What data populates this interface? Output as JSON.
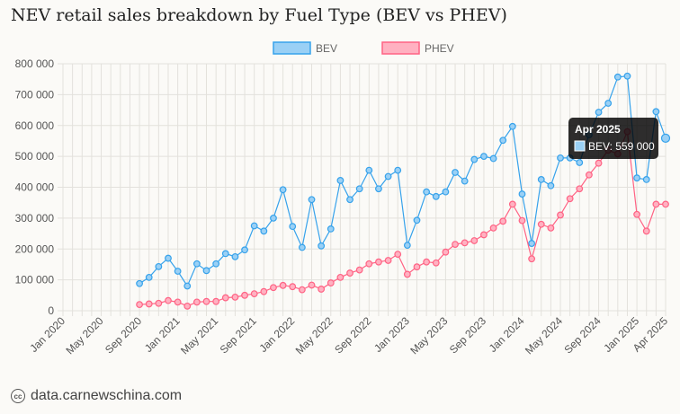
{
  "title": "NEV retail sales breakdown by Fuel Type (BEV vs PHEV)",
  "footer": {
    "source": "data.carnewschina.com",
    "icon": "creative-commons-icon"
  },
  "chart_data": {
    "type": "line",
    "title": "NEV retail sales breakdown by Fuel Type (BEV vs PHEV)",
    "legend_placement": "top-center",
    "grid": true,
    "x_start": "2020-01",
    "x_ticks": [
      "Jan 2020",
      "May 2020",
      "Sep 2020",
      "Jan 2021",
      "May 2021",
      "Sep 2021",
      "Jan 2022",
      "May 2022",
      "Sep 2022",
      "Jan 2023",
      "May 2023",
      "Sep 2023",
      "Jan 2024",
      "May 2024",
      "Sep 2024",
      "Jan 2025",
      "Apr 2025"
    ],
    "y_ticks": [
      "0",
      "100 000",
      "200 000",
      "300 000",
      "400 000",
      "500 000",
      "600 000",
      "700 000",
      "800 000"
    ],
    "ylim": [
      0,
      800000
    ],
    "series": [
      {
        "name": "BEV",
        "color": "#36a2eb",
        "fill": "#9ad0f5",
        "start": "2020-09",
        "values": [
          88000,
          108000,
          143000,
          170000,
          128000,
          80000,
          152000,
          130000,
          152000,
          185000,
          175000,
          197000,
          275000,
          258000,
          300000,
          392000,
          273000,
          205000,
          360000,
          210000,
          265000,
          422000,
          360000,
          395000,
          455000,
          395000,
          435000,
          455000,
          212000,
          293000,
          385000,
          370000,
          385000,
          448000,
          420000,
          490000,
          500000,
          493000,
          552000,
          597000,
          378000,
          218000,
          425000,
          405000,
          495000,
          495000,
          480000,
          570000,
          643000,
          672000,
          757000,
          760000,
          430000,
          425000,
          645000,
          559000
        ]
      },
      {
        "name": "PHEV",
        "color": "#ff6384",
        "fill": "#ffb1c1",
        "start": "2020-09",
        "values": [
          20000,
          22000,
          24000,
          33000,
          28000,
          15000,
          28000,
          30000,
          30000,
          42000,
          44000,
          50000,
          55000,
          62000,
          75000,
          82000,
          78000,
          68000,
          83000,
          70000,
          90000,
          108000,
          122000,
          132000,
          152000,
          158000,
          163000,
          183000,
          118000,
          142000,
          158000,
          155000,
          190000,
          215000,
          220000,
          227000,
          246000,
          268000,
          290000,
          345000,
          292000,
          168000,
          280000,
          268000,
          310000,
          363000,
          395000,
          440000,
          478000,
          520000,
          508000,
          580000,
          312000,
          258000,
          345000,
          345000
        ]
      }
    ],
    "tooltip": {
      "title": "Apr 2025",
      "label": "BEV: 559 000"
    }
  }
}
